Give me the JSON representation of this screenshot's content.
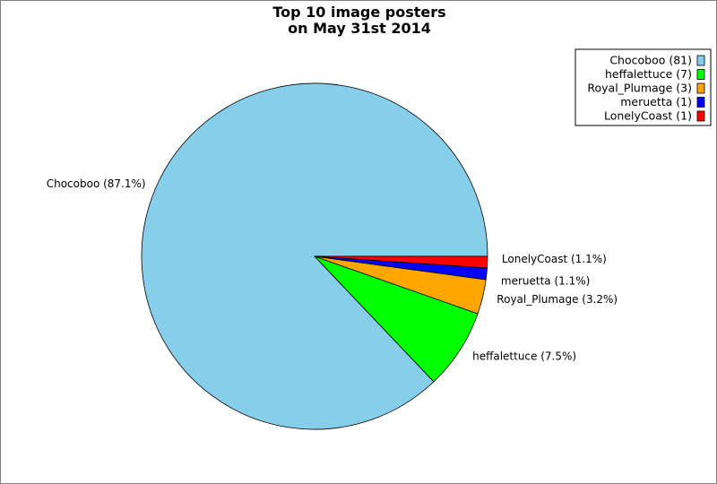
{
  "chart_data": {
    "type": "pie",
    "title": [
      "Top 10 image posters",
      "on May 31st 2014"
    ],
    "legend_placement": "top-right",
    "slices": [
      {
        "name": "Chocoboo",
        "value": 81,
        "legend": "Chocoboo (81)",
        "label": "Chocoboo (87.1%)",
        "color": "#87CEEB"
      },
      {
        "name": "heffalettuce",
        "value": 7,
        "legend": "heffalettuce (7)",
        "label": "heffalettuce (7.5%)",
        "color": "#00FF00"
      },
      {
        "name": "Royal_Plumage",
        "value": 3,
        "legend": "Royal_Plumage (3)",
        "label": "Royal_Plumage (3.2%)",
        "color": "#FFA500"
      },
      {
        "name": "meruetta",
        "value": 1,
        "legend": "meruetta (1)",
        "label": "meruetta (1.1%)",
        "color": "#0000FF"
      },
      {
        "name": "LonelyCoast",
        "value": 1,
        "legend": "LonelyCoast (1)",
        "label": "LonelyCoast (1.1%)",
        "color": "#FF0000"
      }
    ]
  }
}
